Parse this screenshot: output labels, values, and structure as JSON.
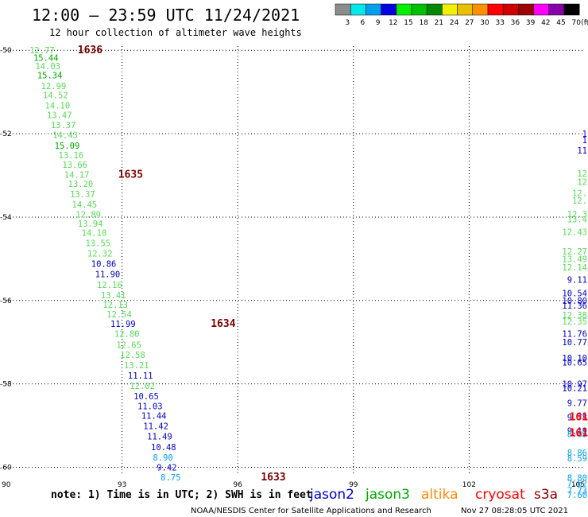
{
  "chart_data": {
    "type": "scatter",
    "title": "12:00 — 23:59 UTC 11/24/2021",
    "subtitle": "12 hour collection of altimeter wave heights",
    "x_ticks": [
      90,
      93,
      96,
      99,
      102,
      105
    ],
    "y_ticks": [
      -50,
      -52,
      -54,
      -56,
      -58,
      -60
    ],
    "xlim": [
      90,
      105
    ],
    "ylim": [
      -60.2,
      -49.9
    ],
    "grid": true,
    "colorbar": {
      "labels": [
        "3",
        "6",
        "9",
        "12",
        "15",
        "18",
        "21",
        "24",
        "27",
        "30",
        "33",
        "36",
        "39",
        "42",
        "45",
        "70"
      ],
      "unit": "(ft)",
      "colors": [
        "#8c8c8c",
        "#00e8e8",
        "#00a0f0",
        "#0000e0",
        "#00f000",
        "#00c000",
        "#008800",
        "#f0f000",
        "#e8c000",
        "#ff9000",
        "#ff0000",
        "#d00000",
        "#a00000",
        "#ff00ff",
        "#8800aa",
        "#000000"
      ]
    },
    "series": [
      {
        "name": "jason2",
        "color": "#0000cc"
      },
      {
        "name": "jason3",
        "color": "#00aa00"
      },
      {
        "name": "altika",
        "color": "#ff8800"
      },
      {
        "name": "cryosat",
        "color": "#ff0000"
      },
      {
        "name": "s3a",
        "color": "#880000"
      }
    ],
    "points": [
      {
        "x": 90.6,
        "y": -50.0,
        "label": "12.77",
        "color": "#55dd55"
      },
      {
        "x": 90.7,
        "y": -50.18,
        "label": "15.44",
        "color": "#00aa00"
      },
      {
        "x": 90.75,
        "y": -50.38,
        "label": "14.03",
        "color": "#55dd55"
      },
      {
        "x": 90.8,
        "y": -50.6,
        "label": "15.34",
        "color": "#00aa00"
      },
      {
        "x": 90.9,
        "y": -50.85,
        "label": "12.99",
        "color": "#55dd55"
      },
      {
        "x": 90.95,
        "y": -51.07,
        "label": "14.52",
        "color": "#55dd55"
      },
      {
        "x": 91.0,
        "y": -51.32,
        "label": "14.10",
        "color": "#55dd55"
      },
      {
        "x": 91.05,
        "y": -51.55,
        "label": "13.47",
        "color": "#55dd55"
      },
      {
        "x": 91.15,
        "y": -51.79,
        "label": "13.37",
        "color": "#55dd55"
      },
      {
        "x": 91.2,
        "y": -52.03,
        "label": "14.43",
        "color": "#55dd55"
      },
      {
        "x": 91.25,
        "y": -52.28,
        "label": "15.09",
        "color": "#00aa00"
      },
      {
        "x": 91.35,
        "y": -52.51,
        "label": "13.16",
        "color": "#55dd55"
      },
      {
        "x": 91.45,
        "y": -52.74,
        "label": "13.66",
        "color": "#55dd55"
      },
      {
        "x": 91.5,
        "y": -52.98,
        "label": "14.17",
        "color": "#55dd55"
      },
      {
        "x": 91.6,
        "y": -53.2,
        "label": "13.20",
        "color": "#55dd55"
      },
      {
        "x": 91.65,
        "y": -53.45,
        "label": "13.37",
        "color": "#55dd55"
      },
      {
        "x": 91.7,
        "y": -53.7,
        "label": "14.45",
        "color": "#55dd55"
      },
      {
        "x": 91.8,
        "y": -53.93,
        "label": "12.89",
        "color": "#55dd55"
      },
      {
        "x": 91.85,
        "y": -54.15,
        "label": "13.94",
        "color": "#55dd55"
      },
      {
        "x": 91.95,
        "y": -54.37,
        "label": "14.10",
        "color": "#55dd55"
      },
      {
        "x": 92.05,
        "y": -54.62,
        "label": "13.55",
        "color": "#55dd55"
      },
      {
        "x": 92.1,
        "y": -54.87,
        "label": "12.32",
        "color": "#55dd55"
      },
      {
        "x": 92.2,
        "y": -55.12,
        "label": "10.86",
        "color": "#0000cc"
      },
      {
        "x": 92.3,
        "y": -55.36,
        "label": "11.90",
        "color": "#0000cc"
      },
      {
        "x": 92.35,
        "y": -55.62,
        "label": "12.16",
        "color": "#55dd55"
      },
      {
        "x": 92.45,
        "y": -55.87,
        "label": "13.41",
        "color": "#55dd55"
      },
      {
        "x": 92.5,
        "y": -56.1,
        "label": "12.13",
        "color": "#55dd55"
      },
      {
        "x": 92.6,
        "y": -56.33,
        "label": "12.54",
        "color": "#55dd55"
      },
      {
        "x": 92.7,
        "y": -56.56,
        "label": "11.99",
        "color": "#0000cc"
      },
      {
        "x": 92.8,
        "y": -56.8,
        "label": "12.80",
        "color": "#55dd55"
      },
      {
        "x": 92.85,
        "y": -57.06,
        "label": "12.65",
        "color": "#55dd55"
      },
      {
        "x": 92.95,
        "y": -57.3,
        "label": "12.58",
        "color": "#55dd55"
      },
      {
        "x": 93.05,
        "y": -57.55,
        "label": "13.21",
        "color": "#55dd55"
      },
      {
        "x": 93.15,
        "y": -57.8,
        "label": "11.11",
        "color": "#0000cc"
      },
      {
        "x": 93.2,
        "y": -58.04,
        "label": "12.02",
        "color": "#55dd55"
      },
      {
        "x": 93.3,
        "y": -58.29,
        "label": "10.65",
        "color": "#0000cc"
      },
      {
        "x": 93.4,
        "y": -58.53,
        "label": "11.03",
        "color": "#0000cc"
      },
      {
        "x": 93.5,
        "y": -58.76,
        "label": "11.44",
        "color": "#0000cc"
      },
      {
        "x": 93.55,
        "y": -59.01,
        "label": "11.42",
        "color": "#0000cc"
      },
      {
        "x": 93.65,
        "y": -59.26,
        "label": "11.49",
        "color": "#0000cc"
      },
      {
        "x": 93.75,
        "y": -59.51,
        "label": "10.48",
        "color": "#0000cc"
      },
      {
        "x": 93.8,
        "y": -59.76,
        "label": "8.90",
        "color": "#00a0f0"
      },
      {
        "x": 93.9,
        "y": -60.0,
        "label": "9.42",
        "color": "#0000cc"
      },
      {
        "x": 94.0,
        "y": -60.24,
        "label": "8.75",
        "color": "#00a0f0"
      }
    ],
    "pass_labels": [
      {
        "x": 91.85,
        "y": -50.0,
        "label": "1636"
      },
      {
        "x": 92.9,
        "y": -52.98,
        "label": "1635"
      },
      {
        "x": 95.3,
        "y": -56.56,
        "label": "1634"
      },
      {
        "x": 96.6,
        "y": -60.24,
        "label": "1633"
      }
    ],
    "right_edge_labels": [
      {
        "y": -52.0,
        "label": "1",
        "color": "#0000cc"
      },
      {
        "y": -52.15,
        "label": "1",
        "color": "#0000cc"
      },
      {
        "y": -52.4,
        "label": "11",
        "color": "#0000cc"
      },
      {
        "y": -52.95,
        "label": "12",
        "color": "#55dd55"
      },
      {
        "y": -53.15,
        "label": "12",
        "color": "#55dd55"
      },
      {
        "y": -53.42,
        "label": "12.",
        "color": "#55dd55"
      },
      {
        "y": -53.6,
        "label": "12.",
        "color": "#55dd55"
      },
      {
        "y": -53.92,
        "label": "12.3",
        "color": "#55dd55"
      },
      {
        "y": -54.05,
        "label": "13.4",
        "color": "#55dd55"
      },
      {
        "y": -54.35,
        "label": "12.43",
        "color": "#55dd55"
      },
      {
        "y": -54.82,
        "label": "12.27",
        "color": "#55dd55"
      },
      {
        "y": -55.0,
        "label": "13.49",
        "color": "#55dd55"
      },
      {
        "y": -55.2,
        "label": "12.14",
        "color": "#55dd55"
      },
      {
        "y": -55.5,
        "label": "9.11",
        "color": "#0000cc"
      },
      {
        "y": -55.82,
        "label": "10.54",
        "color": "#0000cc"
      },
      {
        "y": -56.0,
        "label": "10.80",
        "color": "#0000cc"
      },
      {
        "y": -56.12,
        "label": "11.36",
        "color": "#0000cc"
      },
      {
        "y": -56.35,
        "label": "12.38",
        "color": "#55dd55"
      },
      {
        "y": -56.5,
        "label": "12.35",
        "color": "#55dd55"
      },
      {
        "y": -56.8,
        "label": "11.76",
        "color": "#0000cc"
      },
      {
        "y": -57.0,
        "label": "10.77",
        "color": "#0000cc"
      },
      {
        "y": -57.38,
        "label": "10.10",
        "color": "#0000cc"
      },
      {
        "y": -57.48,
        "label": "10.65",
        "color": "#0000cc"
      },
      {
        "y": -58.0,
        "label": "10.97",
        "color": "#0000cc"
      },
      {
        "y": -58.1,
        "label": "10.21",
        "color": "#0000cc"
      },
      {
        "y": -58.45,
        "label": "9.77",
        "color": "#0000cc"
      },
      {
        "y": -58.8,
        "label": "9.78",
        "color": "#0000cc"
      },
      {
        "y": -59.12,
        "label": "9.19",
        "color": "#0000cc"
      },
      {
        "y": -59.2,
        "label": "8.89",
        "color": "#00a0f0"
      },
      {
        "y": -59.65,
        "label": "8.86",
        "color": "#00a0f0"
      },
      {
        "y": -59.78,
        "label": "8.59",
        "color": "#00a0f0"
      },
      {
        "y": -60.25,
        "label": "8.80",
        "color": "#00a0f0"
      },
      {
        "y": -60.38,
        "label": "7.62",
        "color": "#00a0f0"
      },
      {
        "y": -60.55,
        "label": "7.73",
        "color": "#00a0f0"
      },
      {
        "y": -60.66,
        "label": "7.60",
        "color": "#00a0f0"
      }
    ],
    "right_edge_pass_labels": [
      {
        "y": -58.8,
        "label": "161",
        "color": "#ff0000"
      },
      {
        "y": -59.18,
        "label": "161",
        "color": "#ff0000"
      }
    ],
    "note": "note: 1) Time is in UTC; 2) SWH is in feet",
    "footer": "NOAA/NESDIS Center for Satellite Applications and Research",
    "timestamp": "Nov 27 08:28:05 UTC 2021"
  }
}
